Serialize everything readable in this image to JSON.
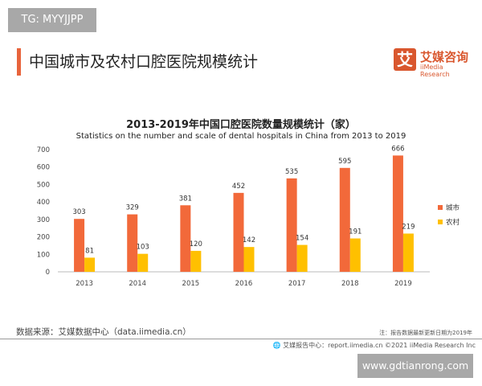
{
  "watermark_top": "TG: MYYJJPP",
  "page_title": "中国城市及农村口腔医院规模统计",
  "logo": {
    "mark": "艾",
    "cn": "艾媒咨询",
    "en": "iiMedia Research"
  },
  "source": "数据来源：艾媒数据中心（data.iimedia.cn）",
  "note": "注：报告数据最新更新日期为2019年",
  "footer": "艾媒报告中心：report.iimedia.cn   ©2021  iiMedia Research  Inc",
  "watermark_bottom": "www.gdtianrong.com",
  "colors": {
    "city": "#f2693a",
    "rural": "#ffc000",
    "accent": "#e8643c"
  },
  "chart_data": {
    "type": "bar",
    "title": "2013-2019年中国口腔医院数量规模统计（家）",
    "subtitle": "Statistics on the number and scale of dental hospitals in China from 2013 to 2019",
    "categories": [
      "2013",
      "2014",
      "2015",
      "2016",
      "2017",
      "2018",
      "2019"
    ],
    "series": [
      {
        "name": "城市",
        "values": [
          303,
          329,
          381,
          452,
          535,
          595,
          666
        ]
      },
      {
        "name": "农村",
        "values": [
          81,
          103,
          120,
          142,
          154,
          191,
          219
        ]
      }
    ],
    "ylim": [
      0,
      700
    ],
    "yticks": [
      0,
      100,
      200,
      300,
      400,
      500,
      600,
      700
    ],
    "grid": false,
    "legend": "right"
  }
}
